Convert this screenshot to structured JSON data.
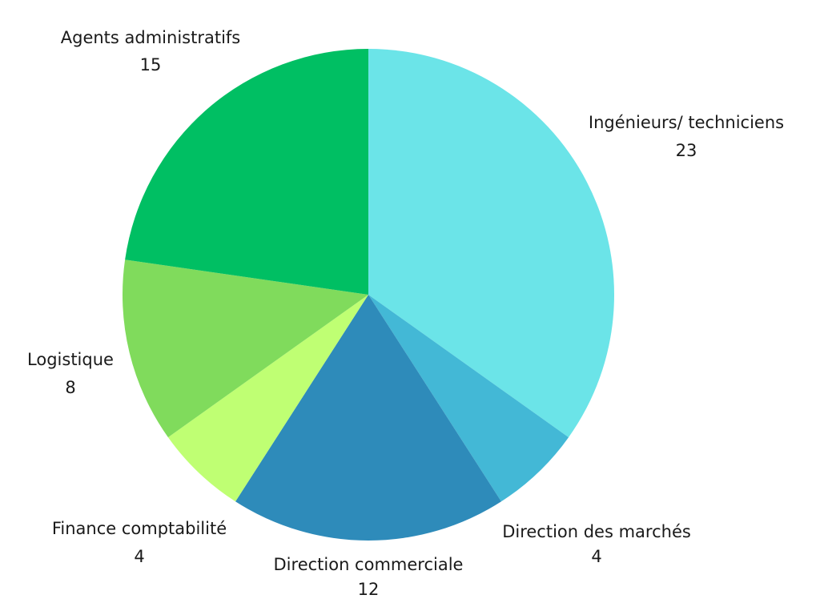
{
  "chart_data": {
    "type": "pie",
    "title": "",
    "start_angle_deg": 0,
    "direction": "clockwise",
    "slices": [
      {
        "label": "Ingénieurs/ techniciens",
        "value": 23,
        "color": "#6BE4E8"
      },
      {
        "label": "Direction des marchés",
        "value": 4,
        "color": "#43B8D6"
      },
      {
        "label": "Direction commerciale",
        "value": 12,
        "color": "#2E8BBA"
      },
      {
        "label": "Finance comptabilité",
        "value": 4,
        "color": "#BFFF73"
      },
      {
        "label": "Logistique",
        "value": 8,
        "color": "#80DB5C"
      },
      {
        "label": "Agents administratifs",
        "value": 15,
        "color": "#00BF63"
      }
    ]
  }
}
